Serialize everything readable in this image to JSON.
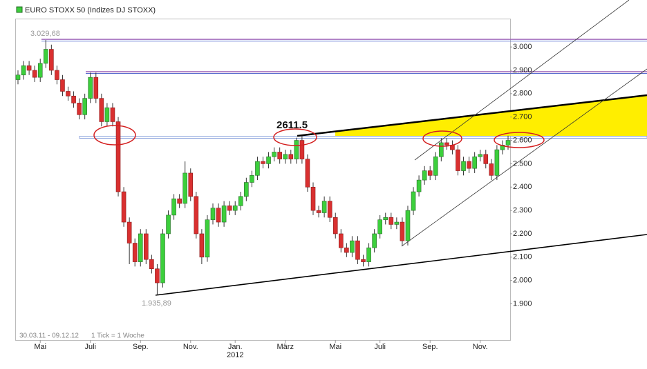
{
  "chart_data": {
    "type": "candlestick",
    "legend": "EURO STOXX 50 (Indizes DJ STOXX)",
    "up_color": "#3ccf3c",
    "down_color": "#d93030",
    "ylim": [
      1745,
      3120
    ],
    "yticks": [
      {
        "value": 1900,
        "label": "1.900"
      },
      {
        "value": 2000,
        "label": "2.000"
      },
      {
        "value": 2100,
        "label": "2.100"
      },
      {
        "value": 2200,
        "label": "2.200"
      },
      {
        "value": 2300,
        "label": "2.300"
      },
      {
        "value": 2400,
        "label": "2.400"
      },
      {
        "value": 2500,
        "label": "2.500"
      },
      {
        "value": 2600,
        "label": "2.600"
      },
      {
        "value": 2700,
        "label": "2.700"
      },
      {
        "value": 2800,
        "label": "2.800"
      },
      {
        "value": 2900,
        "label": "2.900"
      },
      {
        "value": 3000,
        "label": "3.000"
      }
    ],
    "categories": [
      null,
      null,
      null,
      null,
      "Mai",
      null,
      null,
      null,
      null,
      null,
      null,
      null,
      null,
      "Juli",
      null,
      null,
      null,
      null,
      null,
      null,
      null,
      null,
      "Sep.",
      null,
      null,
      null,
      null,
      null,
      null,
      null,
      null,
      "Nov.",
      null,
      null,
      null,
      null,
      null,
      null,
      null,
      "Jan.",
      null,
      null,
      null,
      null,
      null,
      null,
      null,
      null,
      "März",
      null,
      null,
      null,
      null,
      null,
      null,
      null,
      null,
      "Mai",
      null,
      null,
      null,
      null,
      null,
      null,
      null,
      "Juli",
      null,
      null,
      null,
      null,
      null,
      null,
      null,
      null,
      "Sep.",
      null,
      null,
      null,
      null,
      null,
      null,
      null,
      null,
      "Nov.",
      null,
      null,
      null,
      null,
      null
    ],
    "year_label": "2012",
    "open": [
      2860,
      2880,
      2920,
      2900,
      2870,
      2930,
      2990,
      2900,
      2860,
      2810,
      2790,
      2760,
      2710,
      2780,
      2870,
      2780,
      2680,
      2740,
      2680,
      2380,
      2250,
      2160,
      2080,
      2200,
      2090,
      2050,
      1990,
      2200,
      2280,
      2350,
      2330,
      2460,
      2360,
      2200,
      2100,
      2260,
      2310,
      2250,
      2320,
      2300,
      2320,
      2360,
      2420,
      2450,
      2510,
      2500,
      2530,
      2550,
      2520,
      2540,
      2520,
      2600,
      2520,
      2400,
      2300,
      2290,
      2340,
      2270,
      2200,
      2140,
      2120,
      2170,
      2090,
      2080,
      2140,
      2200,
      2260,
      2270,
      2240,
      2250,
      2170,
      2300,
      2380,
      2430,
      2470,
      2450,
      2530,
      2590,
      2580,
      2560,
      2470,
      2510,
      2480,
      2530,
      2540,
      2500,
      2450,
      2560,
      2580
    ],
    "high": [
      2900,
      2940,
      2940,
      2920,
      2950,
      3029.68,
      3010,
      2920,
      2880,
      2830,
      2810,
      2780,
      2800,
      2890,
      2890,
      2800,
      2760,
      2760,
      2700,
      2400,
      2270,
      2180,
      2220,
      2220,
      2110,
      2070,
      2220,
      2300,
      2370,
      2370,
      2510,
      2480,
      2380,
      2220,
      2280,
      2330,
      2330,
      2340,
      2340,
      2340,
      2380,
      2440,
      2470,
      2530,
      2530,
      2550,
      2570,
      2570,
      2560,
      2560,
      2611.5,
      2620,
      2540,
      2420,
      2320,
      2360,
      2360,
      2290,
      2220,
      2160,
      2190,
      2190,
      2110,
      2160,
      2220,
      2280,
      2290,
      2290,
      2270,
      2270,
      2320,
      2400,
      2450,
      2490,
      2490,
      2550,
      2610,
      2610,
      2600,
      2580,
      2530,
      2530,
      2550,
      2560,
      2560,
      2520,
      2580,
      2600,
      2620
    ],
    "low": [
      2840,
      2860,
      2880,
      2850,
      2850,
      2910,
      2880,
      2840,
      2790,
      2770,
      2740,
      2690,
      2690,
      2760,
      2760,
      2660,
      2660,
      2660,
      2360,
      2230,
      2070,
      2060,
      2060,
      2070,
      2030,
      1935.89,
      1970,
      2180,
      2260,
      2310,
      2310,
      2340,
      2180,
      2070,
      2080,
      2240,
      2230,
      2230,
      2280,
      2280,
      2300,
      2340,
      2400,
      2430,
      2480,
      2480,
      2510,
      2500,
      2500,
      2500,
      2500,
      2500,
      2380,
      2280,
      2270,
      2270,
      2250,
      2180,
      2120,
      2100,
      2100,
      2070,
      2060,
      2060,
      2120,
      2180,
      2240,
      2220,
      2220,
      2150,
      2150,
      2280,
      2360,
      2410,
      2430,
      2430,
      2510,
      2560,
      2540,
      2450,
      2450,
      2460,
      2460,
      2510,
      2480,
      2430,
      2430,
      2540,
      2560
    ],
    "close": [
      2880,
      2920,
      2900,
      2870,
      2930,
      2990,
      2900,
      2860,
      2810,
      2790,
      2760,
      2710,
      2780,
      2870,
      2780,
      2680,
      2740,
      2680,
      2380,
      2250,
      2160,
      2080,
      2200,
      2090,
      2050,
      1990,
      2200,
      2280,
      2350,
      2330,
      2460,
      2360,
      2200,
      2100,
      2260,
      2310,
      2250,
      2320,
      2300,
      2320,
      2360,
      2420,
      2450,
      2510,
      2500,
      2530,
      2550,
      2520,
      2540,
      2520,
      2600,
      2520,
      2400,
      2300,
      2290,
      2340,
      2270,
      2200,
      2140,
      2120,
      2170,
      2090,
      2080,
      2140,
      2200,
      2260,
      2270,
      2240,
      2250,
      2170,
      2300,
      2380,
      2430,
      2470,
      2450,
      2530,
      2590,
      2580,
      2560,
      2470,
      2510,
      2480,
      2530,
      2540,
      2500,
      2450,
      2560,
      2580,
      2600
    ],
    "annotations": [
      "3.029,68",
      "1.935,89",
      "2611.5",
      "30.03.11 - 09.12.12",
      "1 Tick = 1 Woche"
    ]
  }
}
